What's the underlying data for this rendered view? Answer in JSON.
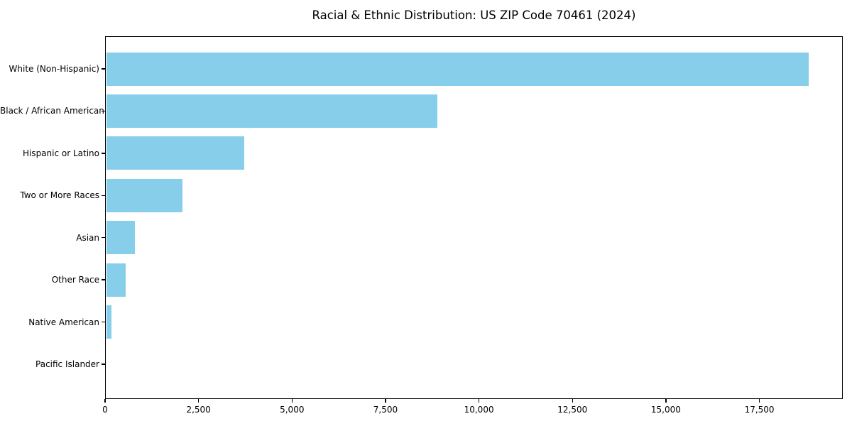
{
  "chart_data": {
    "type": "bar",
    "orientation": "horizontal",
    "title": "Racial & Ethnic Distribution: US ZIP Code 70461 (2024)",
    "categories": [
      "White (Non-Hispanic)",
      "Black / African American",
      "Hispanic or Latino",
      "Two or More Races",
      "Asian",
      "Other Race",
      "Native American",
      "Pacific Islander"
    ],
    "values": [
      18790,
      8850,
      3690,
      2040,
      760,
      530,
      140,
      0
    ],
    "xlabel": "",
    "ylabel": "",
    "xlim": [
      0,
      19730
    ],
    "xticks": [
      {
        "value": 0,
        "label": "0"
      },
      {
        "value": 2500,
        "label": "2,500"
      },
      {
        "value": 5000,
        "label": "5,000"
      },
      {
        "value": 7500,
        "label": "7,500"
      },
      {
        "value": 10000,
        "label": "10,000"
      },
      {
        "value": 12500,
        "label": "12,500"
      },
      {
        "value": 15000,
        "label": "15,000"
      },
      {
        "value": 17500,
        "label": "17,500"
      }
    ],
    "bar_color": "#87CEEB",
    "axis_color": "#000000",
    "text_color": "#000000",
    "grid": false,
    "legend_position": "none"
  }
}
